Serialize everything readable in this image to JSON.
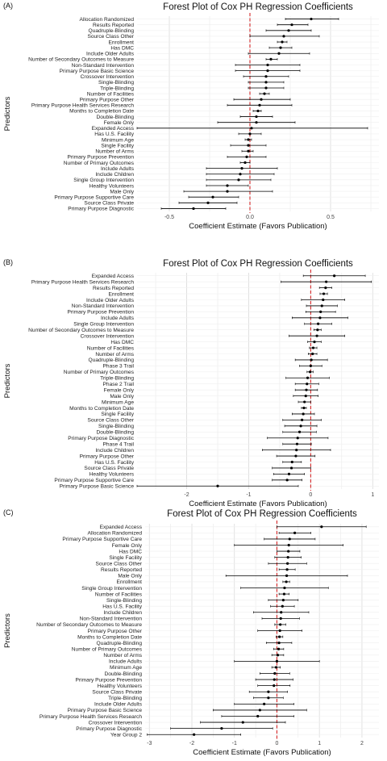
{
  "chart_data": [
    {
      "type": "forest",
      "panel": "(A)",
      "title": "Forest Plot of Cox PH Regression Coefficients",
      "xlabel": "Coefficient Estimate (Favors Publication)",
      "ylabel": "Predictors",
      "xlim": [
        -0.7,
        0.8
      ],
      "xticks": [
        -0.5,
        0.0,
        0.5
      ],
      "xtick_labels": [
        "-0.5",
        "0.0",
        "0.5"
      ],
      "reference_line": 0,
      "rows": [
        {
          "label": "Allocation Randomized",
          "est": 0.38,
          "lo": 0.22,
          "hi": 0.55
        },
        {
          "label": "Results Reported",
          "est": 0.26,
          "lo": 0.17,
          "hi": 0.36
        },
        {
          "label": "Quadruple-Blinding",
          "est": 0.24,
          "lo": 0.1,
          "hi": 0.38
        },
        {
          "label": "Source Class Other",
          "est": 0.21,
          "lo": 0.0,
          "hi": 0.43
        },
        {
          "label": "Enrollment",
          "est": 0.2,
          "lo": 0.17,
          "hi": 0.23
        },
        {
          "label": "Has DMC",
          "est": 0.19,
          "lo": 0.12,
          "hi": 0.26
        },
        {
          "label": "Include Older Adults",
          "est": 0.18,
          "lo": -0.01,
          "hi": 0.37
        },
        {
          "label": "Number of Secondary Outcomes to Measure",
          "est": 0.13,
          "lo": 0.1,
          "hi": 0.17
        },
        {
          "label": "Non-Standard Intervention",
          "est": 0.11,
          "lo": -0.09,
          "hi": 0.31
        },
        {
          "label": "Primary Purpose Basic Science",
          "est": 0.11,
          "lo": -0.09,
          "hi": 0.31
        },
        {
          "label": "Crossover Intervention",
          "est": 0.1,
          "lo": -0.04,
          "hi": 0.24
        },
        {
          "label": "Single-Blinding",
          "est": 0.1,
          "lo": -0.01,
          "hi": 0.21
        },
        {
          "label": "Triple-Blinding",
          "est": 0.1,
          "lo": -0.01,
          "hi": 0.21
        },
        {
          "label": "Number of Facilities",
          "est": 0.09,
          "lo": 0.06,
          "hi": 0.12
        },
        {
          "label": "Primary Purpose Other",
          "est": 0.07,
          "lo": -0.1,
          "hi": 0.25
        },
        {
          "label": "Primary Purpose Health Services Research",
          "est": 0.06,
          "lo": -0.14,
          "hi": 0.26
        },
        {
          "label": "Months to Completion Date",
          "est": 0.05,
          "lo": 0.02,
          "hi": 0.07
        },
        {
          "label": "Double-Blinding",
          "est": 0.04,
          "lo": -0.06,
          "hi": 0.14
        },
        {
          "label": "Female Only",
          "est": 0.04,
          "lo": -0.2,
          "hi": 0.28
        },
        {
          "label": "Expanded Access",
          "est": 0.01,
          "lo": -0.7,
          "hi": 0.73
        },
        {
          "label": "Has U.S. Facility",
          "est": 0.0,
          "lo": -0.07,
          "hi": 0.07
        },
        {
          "label": "Minimum Age",
          "est": -0.01,
          "lo": -0.03,
          "hi": 0.01
        },
        {
          "label": "Single Facility",
          "est": -0.01,
          "lo": -0.12,
          "hi": 0.1
        },
        {
          "label": "Number of Arms",
          "est": -0.01,
          "lo": -0.05,
          "hi": 0.02
        },
        {
          "label": "Primary Purpose Prevention",
          "est": -0.02,
          "lo": -0.14,
          "hi": 0.1
        },
        {
          "label": "Number of Primary Outcomes",
          "est": -0.03,
          "lo": -0.06,
          "hi": 0.0
        },
        {
          "label": "Include Adults",
          "est": -0.05,
          "lo": -0.27,
          "hi": 0.17
        },
        {
          "label": "Include Children",
          "est": -0.06,
          "lo": -0.27,
          "hi": 0.15
        },
        {
          "label": "Single Group Intervention",
          "est": -0.07,
          "lo": -0.27,
          "hi": 0.13
        },
        {
          "label": "Healthy Volunteers",
          "est": -0.14,
          "lo": -0.27,
          "hi": -0.01
        },
        {
          "label": "Male Only",
          "est": -0.14,
          "lo": -0.41,
          "hi": 0.14
        },
        {
          "label": "Primary Purpose Supportive Care",
          "est": -0.23,
          "lo": -0.38,
          "hi": -0.07
        },
        {
          "label": "Source Class Private",
          "est": -0.26,
          "lo": -0.44,
          "hi": -0.08
        },
        {
          "label": "Primary Purpose Diagnostic",
          "est": -0.35,
          "lo": -0.55,
          "hi": -0.15
        }
      ]
    },
    {
      "type": "forest",
      "panel": "(B)",
      "title": "Forest Plot of Cox PH Regression Coefficients",
      "xlabel": "Coefficient Estimate (Favors Publication)",
      "ylabel": "Predictors",
      "xlim": [
        -2.8,
        1.1
      ],
      "xticks": [
        -2,
        -1,
        0,
        1
      ],
      "xtick_labels": [
        "-2",
        "-1",
        "0",
        "1"
      ],
      "reference_line": 0,
      "rows": [
        {
          "label": "Expanded Access",
          "est": 0.38,
          "lo": -0.12,
          "hi": 0.88
        },
        {
          "label": "Primary Purpose Health Services Research",
          "est": 0.25,
          "lo": -0.48,
          "hi": 0.98
        },
        {
          "label": "Results Reported",
          "est": 0.24,
          "lo": 0.14,
          "hi": 0.34
        },
        {
          "label": "Enrollment",
          "est": 0.21,
          "lo": 0.15,
          "hi": 0.27
        },
        {
          "label": "Include Older Adults",
          "est": 0.2,
          "lo": -0.15,
          "hi": 0.55
        },
        {
          "label": "Non-Standard Intervention",
          "est": 0.18,
          "lo": -0.07,
          "hi": 0.43
        },
        {
          "label": "Primary Purpose Prevention",
          "est": 0.16,
          "lo": -0.08,
          "hi": 0.4
        },
        {
          "label": "Include Adults",
          "est": 0.15,
          "lo": -0.3,
          "hi": 0.6
        },
        {
          "label": "Single Group Intervention",
          "est": 0.12,
          "lo": -0.1,
          "hi": 0.34
        },
        {
          "label": "Number of Secondary Outcomes to Measure",
          "est": 0.11,
          "lo": 0.05,
          "hi": 0.17
        },
        {
          "label": "Crossover Intervention",
          "est": 0.1,
          "lo": -0.35,
          "hi": 0.55
        },
        {
          "label": "Has DMC",
          "est": 0.06,
          "lo": -0.05,
          "hi": 0.17
        },
        {
          "label": "Number of Facilities",
          "est": 0.04,
          "lo": -0.02,
          "hi": 0.1
        },
        {
          "label": "Number of Arms",
          "est": 0.03,
          "lo": -0.04,
          "hi": 0.1
        },
        {
          "label": "Quadruple-Blinding",
          "est": 0.01,
          "lo": -0.25,
          "hi": 0.27
        },
        {
          "label": "Phase 3 Trail",
          "est": 0.0,
          "lo": -0.18,
          "hi": 0.18
        },
        {
          "label": "Number of Primary Outcomes",
          "est": -0.01,
          "lo": -0.06,
          "hi": 0.04
        },
        {
          "label": "Triple-Blinding",
          "est": -0.05,
          "lo": -0.4,
          "hi": 0.3
        },
        {
          "label": "Phase 2 Trail",
          "est": -0.06,
          "lo": -0.25,
          "hi": 0.13
        },
        {
          "label": "Female Only",
          "est": -0.07,
          "lo": -0.25,
          "hi": 0.11
        },
        {
          "label": "Male Only",
          "est": -0.08,
          "lo": -0.28,
          "hi": 0.12
        },
        {
          "label": "Minimum Age",
          "est": -0.1,
          "lo": -0.2,
          "hi": 0.0
        },
        {
          "label": "Months to Completion Date",
          "est": -0.11,
          "lo": -0.15,
          "hi": -0.07
        },
        {
          "label": "Single Facility",
          "est": -0.12,
          "lo": -0.3,
          "hi": 0.06
        },
        {
          "label": "Source Class Other",
          "est": -0.14,
          "lo": -0.45,
          "hi": 0.17
        },
        {
          "label": "Single-Blinding",
          "est": -0.16,
          "lo": -0.42,
          "hi": 0.1
        },
        {
          "label": "Double-Blinding",
          "est": -0.18,
          "lo": -0.45,
          "hi": 0.09
        },
        {
          "label": "Primary Purpose Diagnostic",
          "est": -0.21,
          "lo": -0.7,
          "hi": 0.28
        },
        {
          "label": "Phase 4 Trail",
          "est": -0.22,
          "lo": -0.45,
          "hi": 0.01
        },
        {
          "label": "Include Children",
          "est": -0.23,
          "lo": -0.78,
          "hi": 0.32
        },
        {
          "label": "Primary Purpose Other",
          "est": -0.24,
          "lo": -0.55,
          "hi": 0.07
        },
        {
          "label": "Has U.S. Facility",
          "est": -0.3,
          "lo": -0.45,
          "hi": -0.15
        },
        {
          "label": "Source Class Private",
          "est": -0.31,
          "lo": -0.62,
          "hi": 0.0
        },
        {
          "label": "Healthy Volunteers",
          "est": -0.35,
          "lo": -0.6,
          "hi": -0.1
        },
        {
          "label": "Primary Purpose Supportive Care",
          "est": -0.38,
          "lo": -0.62,
          "hi": -0.14
        },
        {
          "label": "Primary Purpose Basic Science",
          "est": -1.5,
          "lo": -2.8,
          "hi": -0.2
        }
      ]
    },
    {
      "type": "forest",
      "panel": "(C)",
      "title": "Forest Plot of Cox PH Regression Coefficients",
      "xlabel": "Coefficient Estimate (Favors Publication)",
      "ylabel": "Predictors",
      "xlim": [
        -3.1,
        2.4
      ],
      "xticks": [
        -3,
        -2,
        -1,
        0,
        1,
        2
      ],
      "xtick_labels": [
        "-3",
        "-2",
        "-1",
        "0",
        "1",
        "2"
      ],
      "reference_line": 0,
      "rows": [
        {
          "label": "Expanded Access",
          "est": 1.05,
          "lo": 0.0,
          "hi": 2.1
        },
        {
          "label": "Allocation Randomized",
          "est": 0.42,
          "lo": 0.05,
          "hi": 0.8
        },
        {
          "label": "Primary Purpose Supportive Care",
          "est": 0.3,
          "lo": -0.3,
          "hi": 0.9
        },
        {
          "label": "Female Only",
          "est": 0.28,
          "lo": -1.0,
          "hi": 1.56
        },
        {
          "label": "Has DMC",
          "est": 0.27,
          "lo": 0.0,
          "hi": 0.54
        },
        {
          "label": "Single Facility",
          "est": 0.26,
          "lo": -0.05,
          "hi": 0.57
        },
        {
          "label": "Source Class Other",
          "est": 0.25,
          "lo": -0.2,
          "hi": 0.7
        },
        {
          "label": "Results Reported",
          "est": 0.24,
          "lo": 0.05,
          "hi": 0.43
        },
        {
          "label": "Male Only",
          "est": 0.23,
          "lo": -1.2,
          "hi": 1.66
        },
        {
          "label": "Enrollment",
          "est": 0.22,
          "lo": 0.14,
          "hi": 0.3
        },
        {
          "label": "Single Group Intervention",
          "est": 0.18,
          "lo": -0.85,
          "hi": 1.21
        },
        {
          "label": "Number of Facilities",
          "est": 0.17,
          "lo": 0.05,
          "hi": 0.29
        },
        {
          "label": "Single-Blinding",
          "est": 0.15,
          "lo": -0.2,
          "hi": 0.5
        },
        {
          "label": "Has U.S. Facility",
          "est": 0.13,
          "lo": -0.15,
          "hi": 0.41
        },
        {
          "label": "Include Children",
          "est": 0.1,
          "lo": -0.55,
          "hi": 0.75
        },
        {
          "label": "Non-Standard Intervention",
          "est": 0.09,
          "lo": -0.35,
          "hi": 0.53
        },
        {
          "label": "Number of Secondary Outcomes to Measure",
          "est": 0.08,
          "lo": -0.05,
          "hi": 0.21
        },
        {
          "label": "Primary Purpose Other",
          "est": 0.07,
          "lo": -0.45,
          "hi": 0.59
        },
        {
          "label": "Months to Completion Date",
          "est": 0.06,
          "lo": -0.02,
          "hi": 0.14
        },
        {
          "label": "Quadruple-Blinding",
          "est": 0.05,
          "lo": -0.25,
          "hi": 0.35
        },
        {
          "label": "Number of Primary Outcomes",
          "est": 0.04,
          "lo": -0.08,
          "hi": 0.16
        },
        {
          "label": "Number of Arms",
          "est": 0.02,
          "lo": -0.12,
          "hi": 0.16
        },
        {
          "label": "Include Adults",
          "est": 0.0,
          "lo": -1.0,
          "hi": 1.0
        },
        {
          "label": "Minimum Age",
          "est": -0.02,
          "lo": -0.12,
          "hi": 0.08
        },
        {
          "label": "Double-Blinding",
          "est": -0.05,
          "lo": -0.4,
          "hi": 0.3
        },
        {
          "label": "Primary Purpose Prevention",
          "est": -0.06,
          "lo": -0.5,
          "hi": 0.38
        },
        {
          "label": "Healthy Volunteers",
          "est": -0.07,
          "lo": -0.45,
          "hi": 0.31
        },
        {
          "label": "Source Class Private",
          "est": -0.2,
          "lo": -0.65,
          "hi": 0.25
        },
        {
          "label": "Triple-Blinding",
          "est": -0.2,
          "lo": -0.55,
          "hi": 0.15
        },
        {
          "label": "Include Older Adults",
          "est": -0.3,
          "lo": -1.0,
          "hi": 0.4
        },
        {
          "label": "Primary Purpose Basic Science",
          "est": -0.4,
          "lo": -1.5,
          "hi": 0.7
        },
        {
          "label": "Primary Purpose Health Services Research",
          "est": -0.45,
          "lo": -1.3,
          "hi": 0.4
        },
        {
          "label": "Crossover Intervention",
          "est": -0.8,
          "lo": -1.8,
          "hi": 0.2
        },
        {
          "label": "Primary Purpose Diagnostic",
          "est": -1.3,
          "lo": -2.5,
          "hi": -0.1
        },
        {
          "label": "Year Group 2",
          "est": -1.95,
          "lo": -3.05,
          "hi": -0.85
        }
      ]
    }
  ],
  "style": {
    "reference_line_color": "#d62728",
    "point_color": "#000000",
    "ci_color": "#000000",
    "grid_color": "#e6e6e6",
    "background": "#ffffff"
  }
}
